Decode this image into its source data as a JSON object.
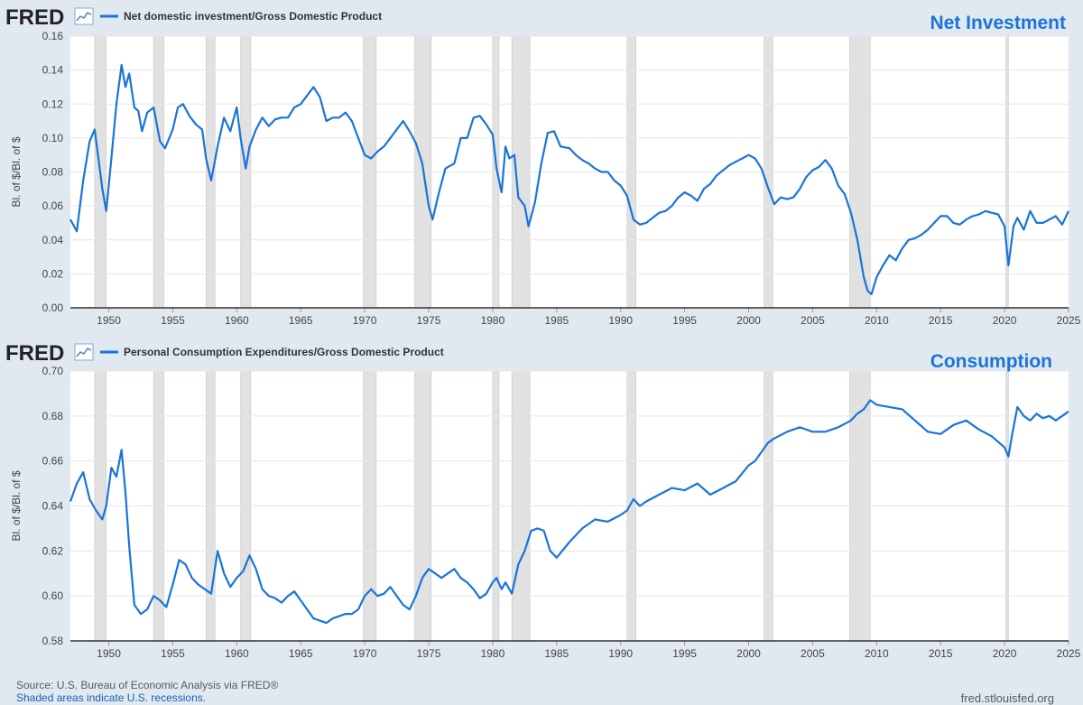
{
  "brand": {
    "logo_text": "FRED",
    "logo_icon": "line-chart-icon"
  },
  "colors": {
    "background": "#e1e9f0",
    "series": "#1a74d9",
    "plot_bg": "#ffffff",
    "recession": "#e1e1e1",
    "annotation": "#1a74d9",
    "grid": "#e6e6e6"
  },
  "recessions": [
    [
      1948.9,
      1949.8
    ],
    [
      1953.5,
      1954.3
    ],
    [
      1957.6,
      1958.3
    ],
    [
      1960.3,
      1961.1
    ],
    [
      1969.9,
      1970.9
    ],
    [
      1973.9,
      1975.2
    ],
    [
      1980.0,
      1980.5
    ],
    [
      1981.5,
      1982.9
    ],
    [
      1990.5,
      1991.2
    ],
    [
      2001.2,
      2001.9
    ],
    [
      2007.9,
      2009.5
    ],
    [
      2020.1,
      2020.3
    ]
  ],
  "chart_data": [
    {
      "type": "line",
      "id": "investment",
      "legend": "Net domestic investment/Gross Domestic Product",
      "annotation": "Net Investment",
      "ylabel": "Bl. of $/Bl. of $",
      "xlim": [
        1947,
        2025
      ],
      "ylim": [
        0,
        0.16
      ],
      "yticks": [
        "0.00",
        "0.02",
        "0.04",
        "0.06",
        "0.08",
        "0.10",
        "0.12",
        "0.14",
        "0.16"
      ],
      "xticks": [
        "1950",
        "1955",
        "1960",
        "1965",
        "1970",
        "1975",
        "1980",
        "1985",
        "1990",
        "1995",
        "2000",
        "2005",
        "2010",
        "2015",
        "2020",
        "2025"
      ],
      "series": [
        {
          "name": "Net domestic investment/Gross Domestic Product",
          "x": [
            1947.0,
            1947.5,
            1948.0,
            1948.5,
            1948.9,
            1949.5,
            1949.8,
            1950.2,
            1950.6,
            1951.0,
            1951.3,
            1951.6,
            1952.0,
            1952.3,
            1952.6,
            1953.0,
            1953.5,
            1954.0,
            1954.4,
            1955.0,
            1955.4,
            1955.8,
            1956.3,
            1956.8,
            1957.3,
            1957.6,
            1958.0,
            1958.5,
            1959.0,
            1959.5,
            1960.0,
            1960.3,
            1960.7,
            1961.0,
            1961.5,
            1962.0,
            1962.5,
            1963.0,
            1963.5,
            1964.0,
            1964.5,
            1965.0,
            1965.5,
            1966.0,
            1966.5,
            1967.0,
            1967.5,
            1968.0,
            1968.5,
            1969.0,
            1969.5,
            1970.0,
            1970.5,
            1971.0,
            1971.5,
            1972.0,
            1972.5,
            1973.0,
            1973.5,
            1974.0,
            1974.5,
            1975.0,
            1975.3,
            1975.8,
            1976.3,
            1977.0,
            1977.5,
            1978.0,
            1978.5,
            1979.0,
            1979.5,
            1980.0,
            1980.3,
            1980.7,
            1981.0,
            1981.3,
            1981.7,
            1982.0,
            1982.5,
            1982.8,
            1983.3,
            1983.8,
            1984.3,
            1984.8,
            1985.3,
            1986.0,
            1986.5,
            1987.0,
            1987.5,
            1988.0,
            1988.5,
            1989.0,
            1989.5,
            1990.0,
            1990.5,
            1991.0,
            1991.5,
            1992.0,
            1992.5,
            1993.0,
            1993.5,
            1994.0,
            1994.5,
            1995.0,
            1995.5,
            1996.0,
            1996.5,
            1997.0,
            1997.5,
            1998.0,
            1998.5,
            1999.0,
            1999.5,
            2000.0,
            2000.5,
            2001.0,
            2001.5,
            2002.0,
            2002.5,
            2003.0,
            2003.5,
            2004.0,
            2004.5,
            2005.0,
            2005.5,
            2006.0,
            2006.5,
            2007.0,
            2007.5,
            2008.0,
            2008.5,
            2009.0,
            2009.3,
            2009.6,
            2010.0,
            2010.5,
            2011.0,
            2011.5,
            2012.0,
            2012.5,
            2013.0,
            2013.5,
            2014.0,
            2014.5,
            2015.0,
            2015.5,
            2016.0,
            2016.5,
            2017.0,
            2017.5,
            2018.0,
            2018.5,
            2019.0,
            2019.5,
            2020.0,
            2020.3,
            2020.7,
            2021.0,
            2021.5,
            2022.0,
            2022.5,
            2023.0,
            2023.5,
            2024.0,
            2024.5,
            2025.0
          ],
          "values": [
            0.052,
            0.045,
            0.075,
            0.098,
            0.105,
            0.07,
            0.057,
            0.088,
            0.12,
            0.143,
            0.13,
            0.138,
            0.118,
            0.116,
            0.104,
            0.115,
            0.118,
            0.098,
            0.094,
            0.105,
            0.118,
            0.12,
            0.113,
            0.108,
            0.105,
            0.088,
            0.075,
            0.095,
            0.112,
            0.104,
            0.118,
            0.1,
            0.082,
            0.095,
            0.105,
            0.112,
            0.107,
            0.111,
            0.112,
            0.112,
            0.118,
            0.12,
            0.125,
            0.13,
            0.124,
            0.11,
            0.112,
            0.112,
            0.115,
            0.11,
            0.1,
            0.09,
            0.088,
            0.092,
            0.095,
            0.1,
            0.105,
            0.11,
            0.104,
            0.097,
            0.085,
            0.06,
            0.052,
            0.068,
            0.082,
            0.085,
            0.1,
            0.1,
            0.112,
            0.113,
            0.108,
            0.102,
            0.082,
            0.068,
            0.095,
            0.088,
            0.09,
            0.065,
            0.06,
            0.048,
            0.062,
            0.085,
            0.103,
            0.104,
            0.095,
            0.094,
            0.09,
            0.087,
            0.085,
            0.082,
            0.08,
            0.08,
            0.075,
            0.072,
            0.066,
            0.052,
            0.049,
            0.05,
            0.053,
            0.056,
            0.057,
            0.06,
            0.065,
            0.068,
            0.066,
            0.063,
            0.07,
            0.073,
            0.078,
            0.081,
            0.084,
            0.086,
            0.088,
            0.09,
            0.088,
            0.082,
            0.071,
            0.061,
            0.065,
            0.064,
            0.065,
            0.07,
            0.077,
            0.081,
            0.083,
            0.087,
            0.082,
            0.072,
            0.067,
            0.056,
            0.04,
            0.018,
            0.01,
            0.008,
            0.018,
            0.025,
            0.031,
            0.028,
            0.035,
            0.04,
            0.041,
            0.043,
            0.046,
            0.05,
            0.054,
            0.054,
            0.05,
            0.049,
            0.052,
            0.054,
            0.055,
            0.057,
            0.056,
            0.055,
            0.048,
            0.025,
            0.048,
            0.053,
            0.046,
            0.057,
            0.05,
            0.05,
            0.052,
            0.054,
            0.049,
            0.057
          ]
        }
      ]
    },
    {
      "type": "line",
      "id": "consumption",
      "legend": "Personal Consumption Expenditures/Gross Domestic Product",
      "annotation": "Consumption",
      "ylabel": "Bl. of $/Bl. of $",
      "xlim": [
        1947,
        2025
      ],
      "ylim": [
        0.58,
        0.7
      ],
      "yticks": [
        "0.58",
        "0.60",
        "0.62",
        "0.64",
        "0.66",
        "0.68",
        "0.70"
      ],
      "xticks": [
        "1950",
        "1955",
        "1960",
        "1965",
        "1970",
        "1975",
        "1980",
        "1985",
        "1990",
        "1995",
        "2000",
        "2005",
        "2010",
        "2015",
        "2020",
        "2025"
      ],
      "series": [
        {
          "name": "Personal Consumption Expenditures/Gross Domestic Product",
          "x": [
            1947.0,
            1947.5,
            1948.0,
            1948.5,
            1949.0,
            1949.5,
            1949.8,
            1950.2,
            1950.6,
            1951.0,
            1951.3,
            1951.6,
            1952.0,
            1952.5,
            1953.0,
            1953.5,
            1954.0,
            1954.5,
            1955.0,
            1955.5,
            1956.0,
            1956.5,
            1957.0,
            1957.5,
            1958.0,
            1958.5,
            1959.0,
            1959.5,
            1960.0,
            1960.5,
            1961.0,
            1961.5,
            1962.0,
            1962.5,
            1963.0,
            1963.5,
            1964.0,
            1964.5,
            1965.0,
            1965.5,
            1966.0,
            1966.5,
            1967.0,
            1967.5,
            1968.0,
            1968.5,
            1969.0,
            1969.5,
            1970.0,
            1970.5,
            1971.0,
            1971.5,
            1972.0,
            1972.5,
            1973.0,
            1973.5,
            1974.0,
            1974.5,
            1975.0,
            1975.5,
            1976.0,
            1976.5,
            1977.0,
            1977.5,
            1978.0,
            1978.5,
            1979.0,
            1979.5,
            1980.0,
            1980.3,
            1980.7,
            1981.0,
            1981.5,
            1982.0,
            1982.5,
            1983.0,
            1983.5,
            1984.0,
            1984.5,
            1985.0,
            1986.0,
            1987.0,
            1988.0,
            1989.0,
            1990.0,
            1990.5,
            1991.0,
            1991.5,
            1992.0,
            1993.0,
            1994.0,
            1995.0,
            1996.0,
            1997.0,
            1998.0,
            1999.0,
            2000.0,
            2000.5,
            2001.0,
            2001.5,
            2002.0,
            2003.0,
            2004.0,
            2005.0,
            2006.0,
            2007.0,
            2008.0,
            2008.5,
            2009.0,
            2009.5,
            2010.0,
            2011.0,
            2012.0,
            2013.0,
            2014.0,
            2015.0,
            2016.0,
            2017.0,
            2018.0,
            2019.0,
            2020.0,
            2020.3,
            2020.6,
            2021.0,
            2021.5,
            2022.0,
            2022.5,
            2023.0,
            2023.5,
            2024.0,
            2024.5,
            2025.0
          ],
          "values": [
            0.642,
            0.65,
            0.655,
            0.643,
            0.638,
            0.634,
            0.64,
            0.657,
            0.653,
            0.665,
            0.646,
            0.622,
            0.596,
            0.592,
            0.594,
            0.6,
            0.598,
            0.595,
            0.605,
            0.616,
            0.614,
            0.608,
            0.605,
            0.603,
            0.601,
            0.62,
            0.61,
            0.604,
            0.608,
            0.611,
            0.618,
            0.612,
            0.603,
            0.6,
            0.599,
            0.597,
            0.6,
            0.602,
            0.598,
            0.594,
            0.59,
            0.589,
            0.588,
            0.59,
            0.591,
            0.592,
            0.592,
            0.594,
            0.6,
            0.603,
            0.6,
            0.601,
            0.604,
            0.6,
            0.596,
            0.594,
            0.6,
            0.608,
            0.612,
            0.61,
            0.608,
            0.61,
            0.612,
            0.608,
            0.606,
            0.603,
            0.599,
            0.601,
            0.606,
            0.608,
            0.603,
            0.606,
            0.601,
            0.614,
            0.62,
            0.629,
            0.63,
            0.629,
            0.62,
            0.617,
            0.624,
            0.63,
            0.634,
            0.633,
            0.636,
            0.638,
            0.643,
            0.64,
            0.642,
            0.645,
            0.648,
            0.647,
            0.65,
            0.645,
            0.648,
            0.651,
            0.658,
            0.66,
            0.664,
            0.668,
            0.67,
            0.673,
            0.675,
            0.673,
            0.673,
            0.675,
            0.678,
            0.681,
            0.683,
            0.687,
            0.685,
            0.684,
            0.683,
            0.678,
            0.673,
            0.672,
            0.676,
            0.678,
            0.674,
            0.671,
            0.666,
            0.662,
            0.672,
            0.684,
            0.68,
            0.678,
            0.681,
            0.679,
            0.68,
            0.678,
            0.68,
            0.682
          ]
        }
      ]
    }
  ],
  "footer": {
    "source": "Source: U.S. Bureau of Economic Analysis via FRED®",
    "recessions_note": "Shaded areas indicate U.S. recessions.",
    "site": "fred.stlouisfed.org"
  }
}
